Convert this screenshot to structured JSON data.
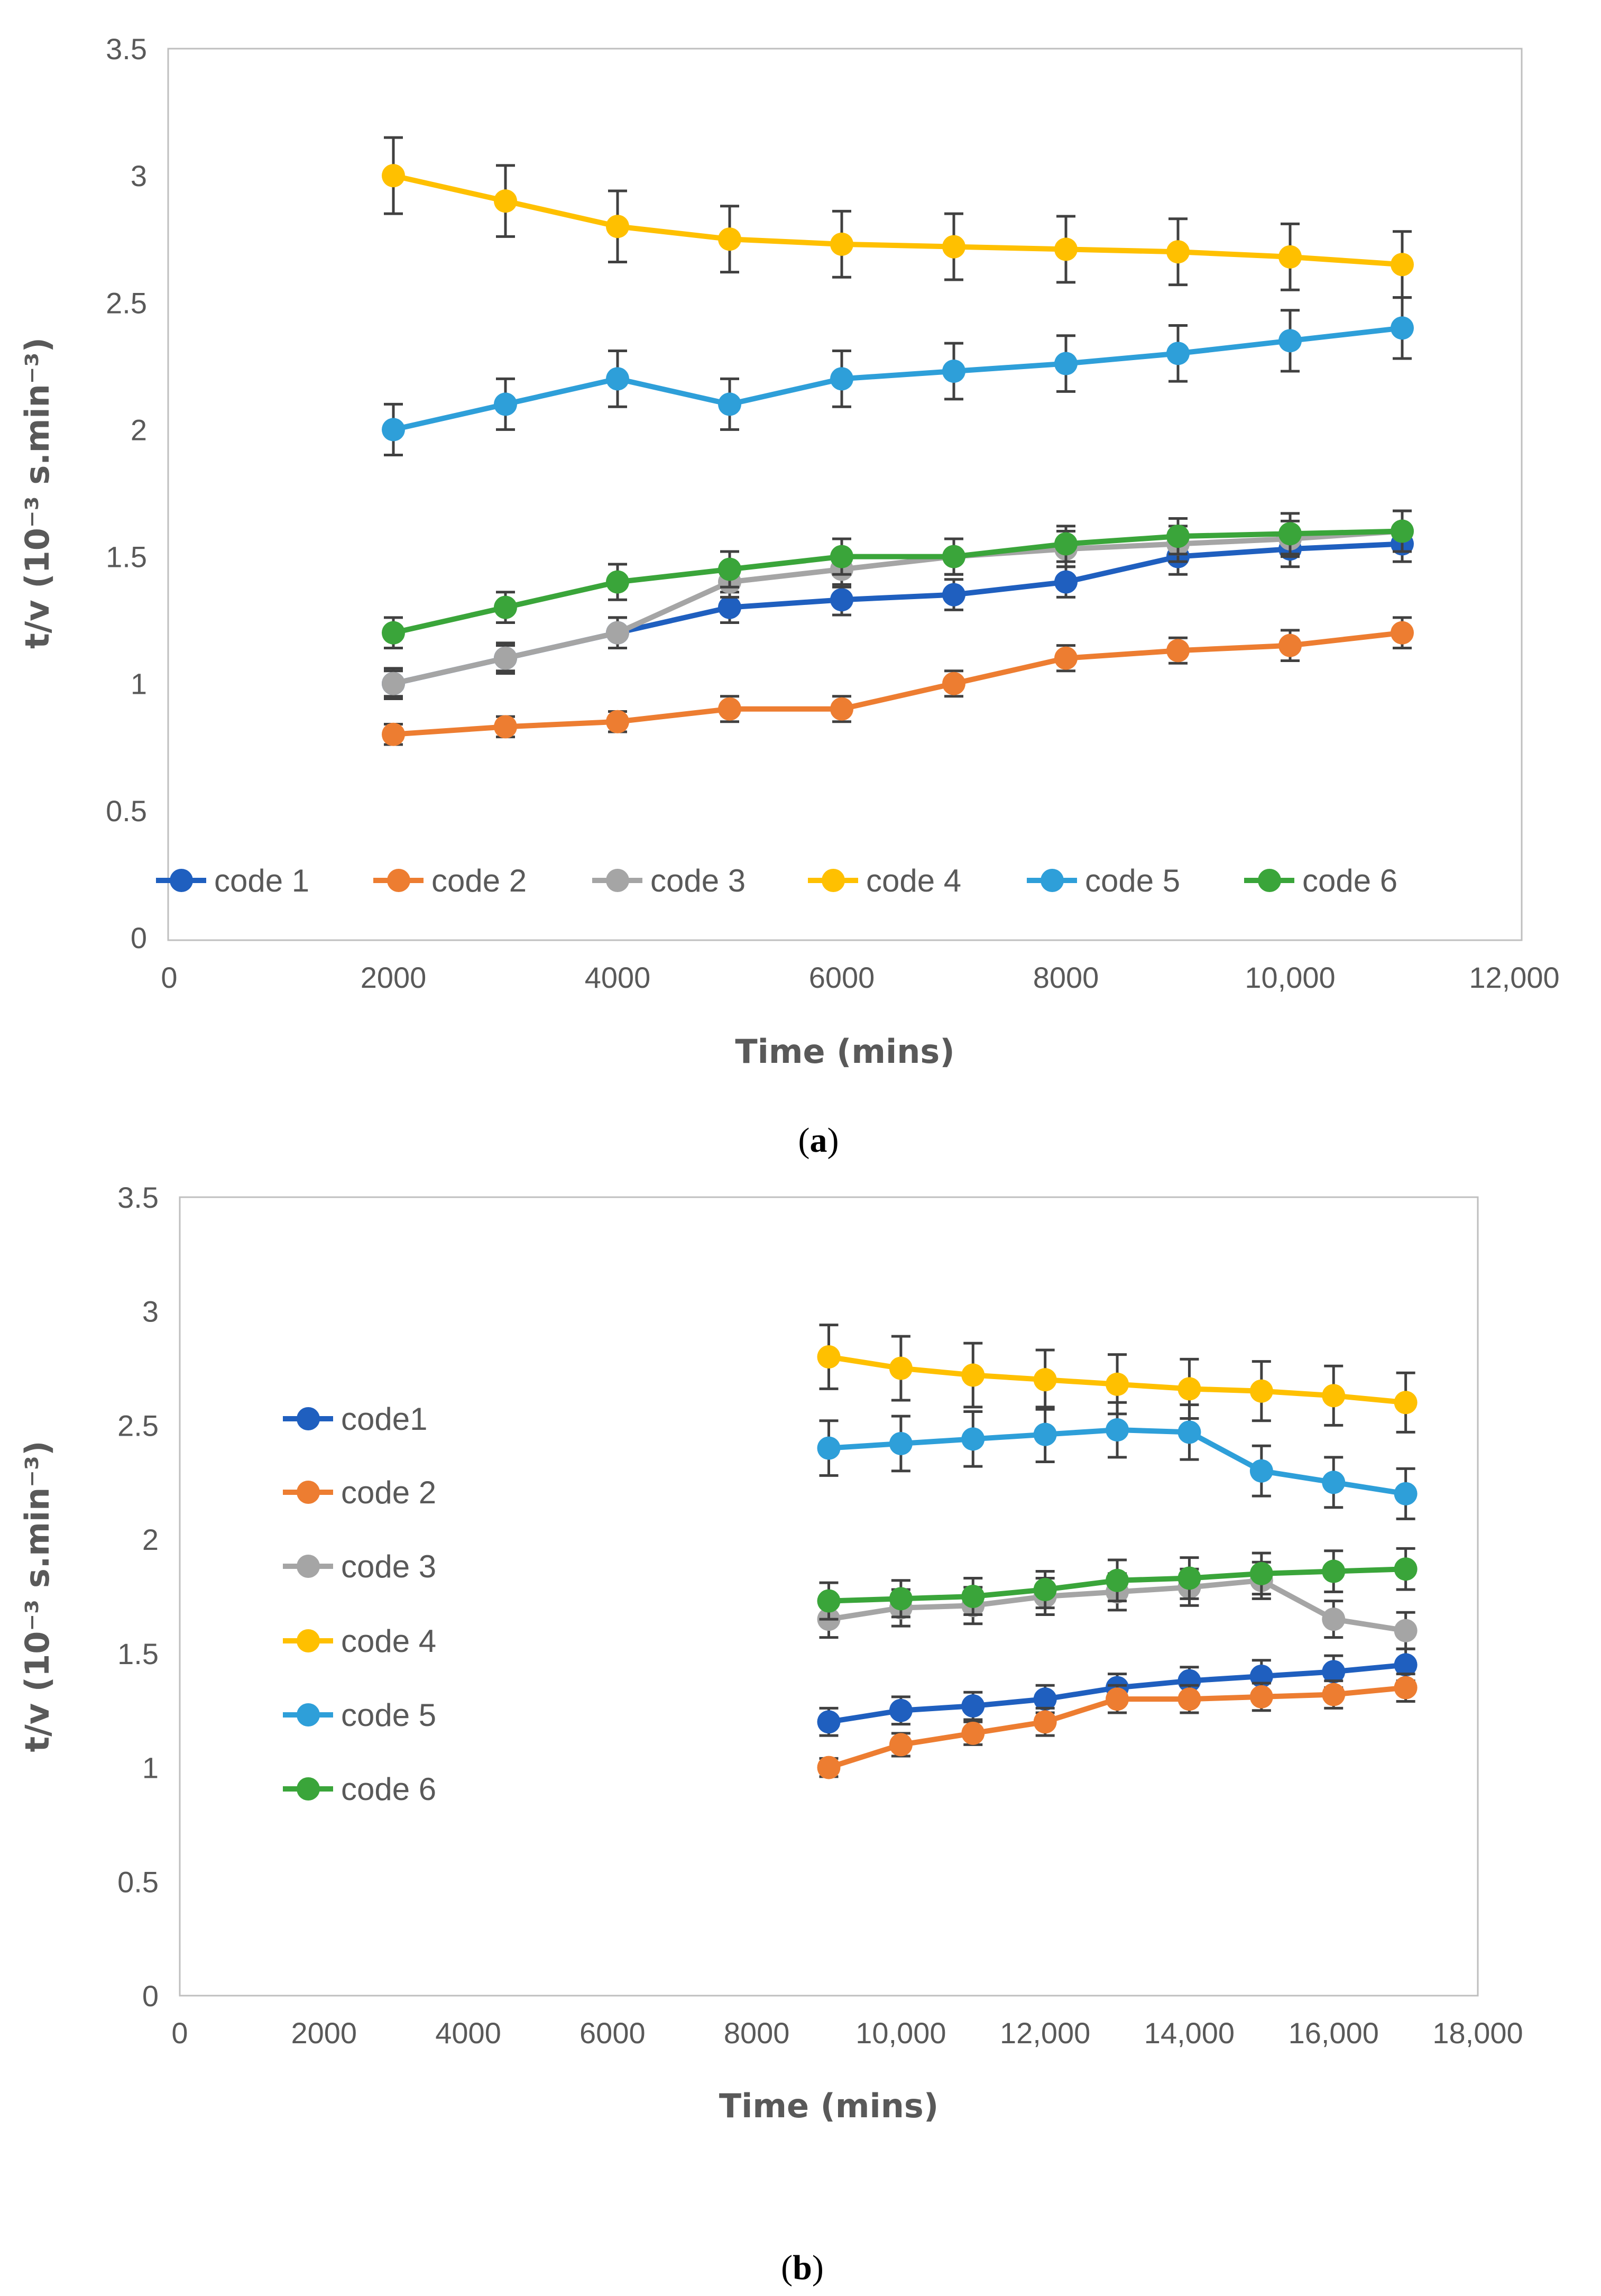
{
  "chart_data": [
    {
      "type": "line",
      "panel": "(a)",
      "caption_letter": "a",
      "xlabel": "Time (mins)",
      "ylabel": "t/v (10⁻³ s.min⁻³)",
      "xlim": [
        0,
        12000
      ],
      "ylim": [
        0,
        3.5
      ],
      "x_ticks": [
        0,
        2000,
        4000,
        6000,
        8000,
        10000,
        12000
      ],
      "x_tick_labels": [
        "0",
        "2000",
        "4000",
        "6000",
        "8000",
        "10,000",
        "12,000"
      ],
      "y_ticks": [
        0,
        0.5,
        1,
        1.5,
        2,
        2.5,
        3,
        3.5
      ],
      "y_tick_labels": [
        "0",
        "0.5",
        "1",
        "1.5",
        "2",
        "2.5",
        "3",
        "3.5"
      ],
      "legend_position": "bottom-inside",
      "x": [
        2000,
        3000,
        4000,
        5000,
        6000,
        7000,
        8000,
        9000,
        10000,
        11000
      ],
      "series": [
        {
          "name": "code 1",
          "color": "#1f5fbf",
          "values": [
            1.0,
            1.1,
            1.2,
            1.3,
            1.33,
            1.35,
            1.4,
            1.5,
            1.53,
            1.55
          ],
          "errors": [
            0.06,
            0.06,
            0.06,
            0.06,
            0.06,
            0.06,
            0.06,
            0.07,
            0.07,
            0.07
          ]
        },
        {
          "name": "code 2",
          "color": "#ed7d31",
          "values": [
            0.8,
            0.83,
            0.85,
            0.9,
            0.9,
            1.0,
            1.1,
            1.13,
            1.15,
            1.2
          ],
          "errors": [
            0.04,
            0.04,
            0.04,
            0.05,
            0.05,
            0.05,
            0.05,
            0.05,
            0.06,
            0.06
          ]
        },
        {
          "name": "code 3",
          "color": "#a5a5a5",
          "values": [
            1.0,
            1.1,
            1.2,
            1.4,
            1.45,
            1.5,
            1.53,
            1.55,
            1.57,
            1.6
          ],
          "errors": [
            0.05,
            0.05,
            0.06,
            0.06,
            0.07,
            0.07,
            0.07,
            0.07,
            0.07,
            0.08
          ]
        },
        {
          "name": "code 4",
          "color": "#ffc000",
          "values": [
            3.0,
            2.9,
            2.8,
            2.75,
            2.73,
            2.72,
            2.71,
            2.7,
            2.68,
            2.65
          ],
          "errors": [
            0.15,
            0.14,
            0.14,
            0.13,
            0.13,
            0.13,
            0.13,
            0.13,
            0.13,
            0.13
          ]
        },
        {
          "name": "code 5",
          "color": "#2e9fd9",
          "values": [
            2.0,
            2.1,
            2.2,
            2.1,
            2.2,
            2.23,
            2.26,
            2.3,
            2.35,
            2.4
          ],
          "errors": [
            0.1,
            0.1,
            0.11,
            0.1,
            0.11,
            0.11,
            0.11,
            0.11,
            0.12,
            0.12
          ]
        },
        {
          "name": "code 6",
          "color": "#3aa53a",
          "values": [
            1.2,
            1.3,
            1.4,
            1.45,
            1.5,
            1.5,
            1.55,
            1.58,
            1.59,
            1.6
          ],
          "errors": [
            0.06,
            0.06,
            0.07,
            0.07,
            0.07,
            0.07,
            0.07,
            0.07,
            0.08,
            0.08
          ]
        }
      ]
    },
    {
      "type": "line",
      "panel": "(b)",
      "caption_letter": "b",
      "xlabel": "Time (mins)",
      "ylabel": "t/v (10⁻³ s.min⁻³)",
      "xlim": [
        0,
        18000
      ],
      "ylim": [
        0,
        3.5
      ],
      "x_ticks": [
        0,
        2000,
        4000,
        6000,
        8000,
        10000,
        12000,
        14000,
        16000,
        18000
      ],
      "x_tick_labels": [
        "0",
        "2000",
        "4000",
        "6000",
        "8000",
        "10,000",
        "12,000",
        "14,000",
        "16,000",
        "18,000"
      ],
      "y_ticks": [
        0,
        0.5,
        1,
        1.5,
        2,
        2.5,
        3,
        3.5
      ],
      "y_tick_labels": [
        "0",
        "0.5",
        "1",
        "1.5",
        "2",
        "2.5",
        "3",
        "3.5"
      ],
      "legend_position": "left",
      "x": [
        9000,
        10000,
        11000,
        12000,
        13000,
        14000,
        15000,
        16000,
        17000
      ],
      "series": [
        {
          "name": "code1",
          "color": "#1f5fbf",
          "values": [
            1.2,
            1.25,
            1.27,
            1.3,
            1.35,
            1.38,
            1.4,
            1.42,
            1.45
          ],
          "errors": [
            0.06,
            0.06,
            0.06,
            0.06,
            0.06,
            0.06,
            0.07,
            0.07,
            0.07
          ]
        },
        {
          "name": "code 2",
          "color": "#ed7d31",
          "values": [
            1.0,
            1.1,
            1.15,
            1.2,
            1.3,
            1.3,
            1.31,
            1.32,
            1.35
          ],
          "errors": [
            0.04,
            0.05,
            0.05,
            0.06,
            0.06,
            0.06,
            0.06,
            0.06,
            0.06
          ]
        },
        {
          "name": "code 3",
          "color": "#a5a5a5",
          "values": [
            1.65,
            1.7,
            1.71,
            1.75,
            1.77,
            1.79,
            1.82,
            1.65,
            1.6
          ],
          "errors": [
            0.08,
            0.08,
            0.08,
            0.08,
            0.08,
            0.08,
            0.08,
            0.08,
            0.08
          ]
        },
        {
          "name": "code 4",
          "color": "#ffc000",
          "values": [
            2.8,
            2.75,
            2.72,
            2.7,
            2.68,
            2.66,
            2.65,
            2.63,
            2.6
          ],
          "errors": [
            0.14,
            0.14,
            0.14,
            0.13,
            0.13,
            0.13,
            0.13,
            0.13,
            0.13
          ]
        },
        {
          "name": "code 5",
          "color": "#2e9fd9",
          "values": [
            2.4,
            2.42,
            2.44,
            2.46,
            2.48,
            2.47,
            2.3,
            2.25,
            2.2
          ],
          "errors": [
            0.12,
            0.12,
            0.12,
            0.12,
            0.12,
            0.12,
            0.11,
            0.11,
            0.11
          ]
        },
        {
          "name": "code 6",
          "color": "#3aa53a",
          "values": [
            1.73,
            1.74,
            1.75,
            1.78,
            1.82,
            1.83,
            1.85,
            1.86,
            1.87
          ],
          "errors": [
            0.08,
            0.08,
            0.08,
            0.08,
            0.09,
            0.09,
            0.09,
            0.09,
            0.09
          ]
        }
      ]
    }
  ]
}
